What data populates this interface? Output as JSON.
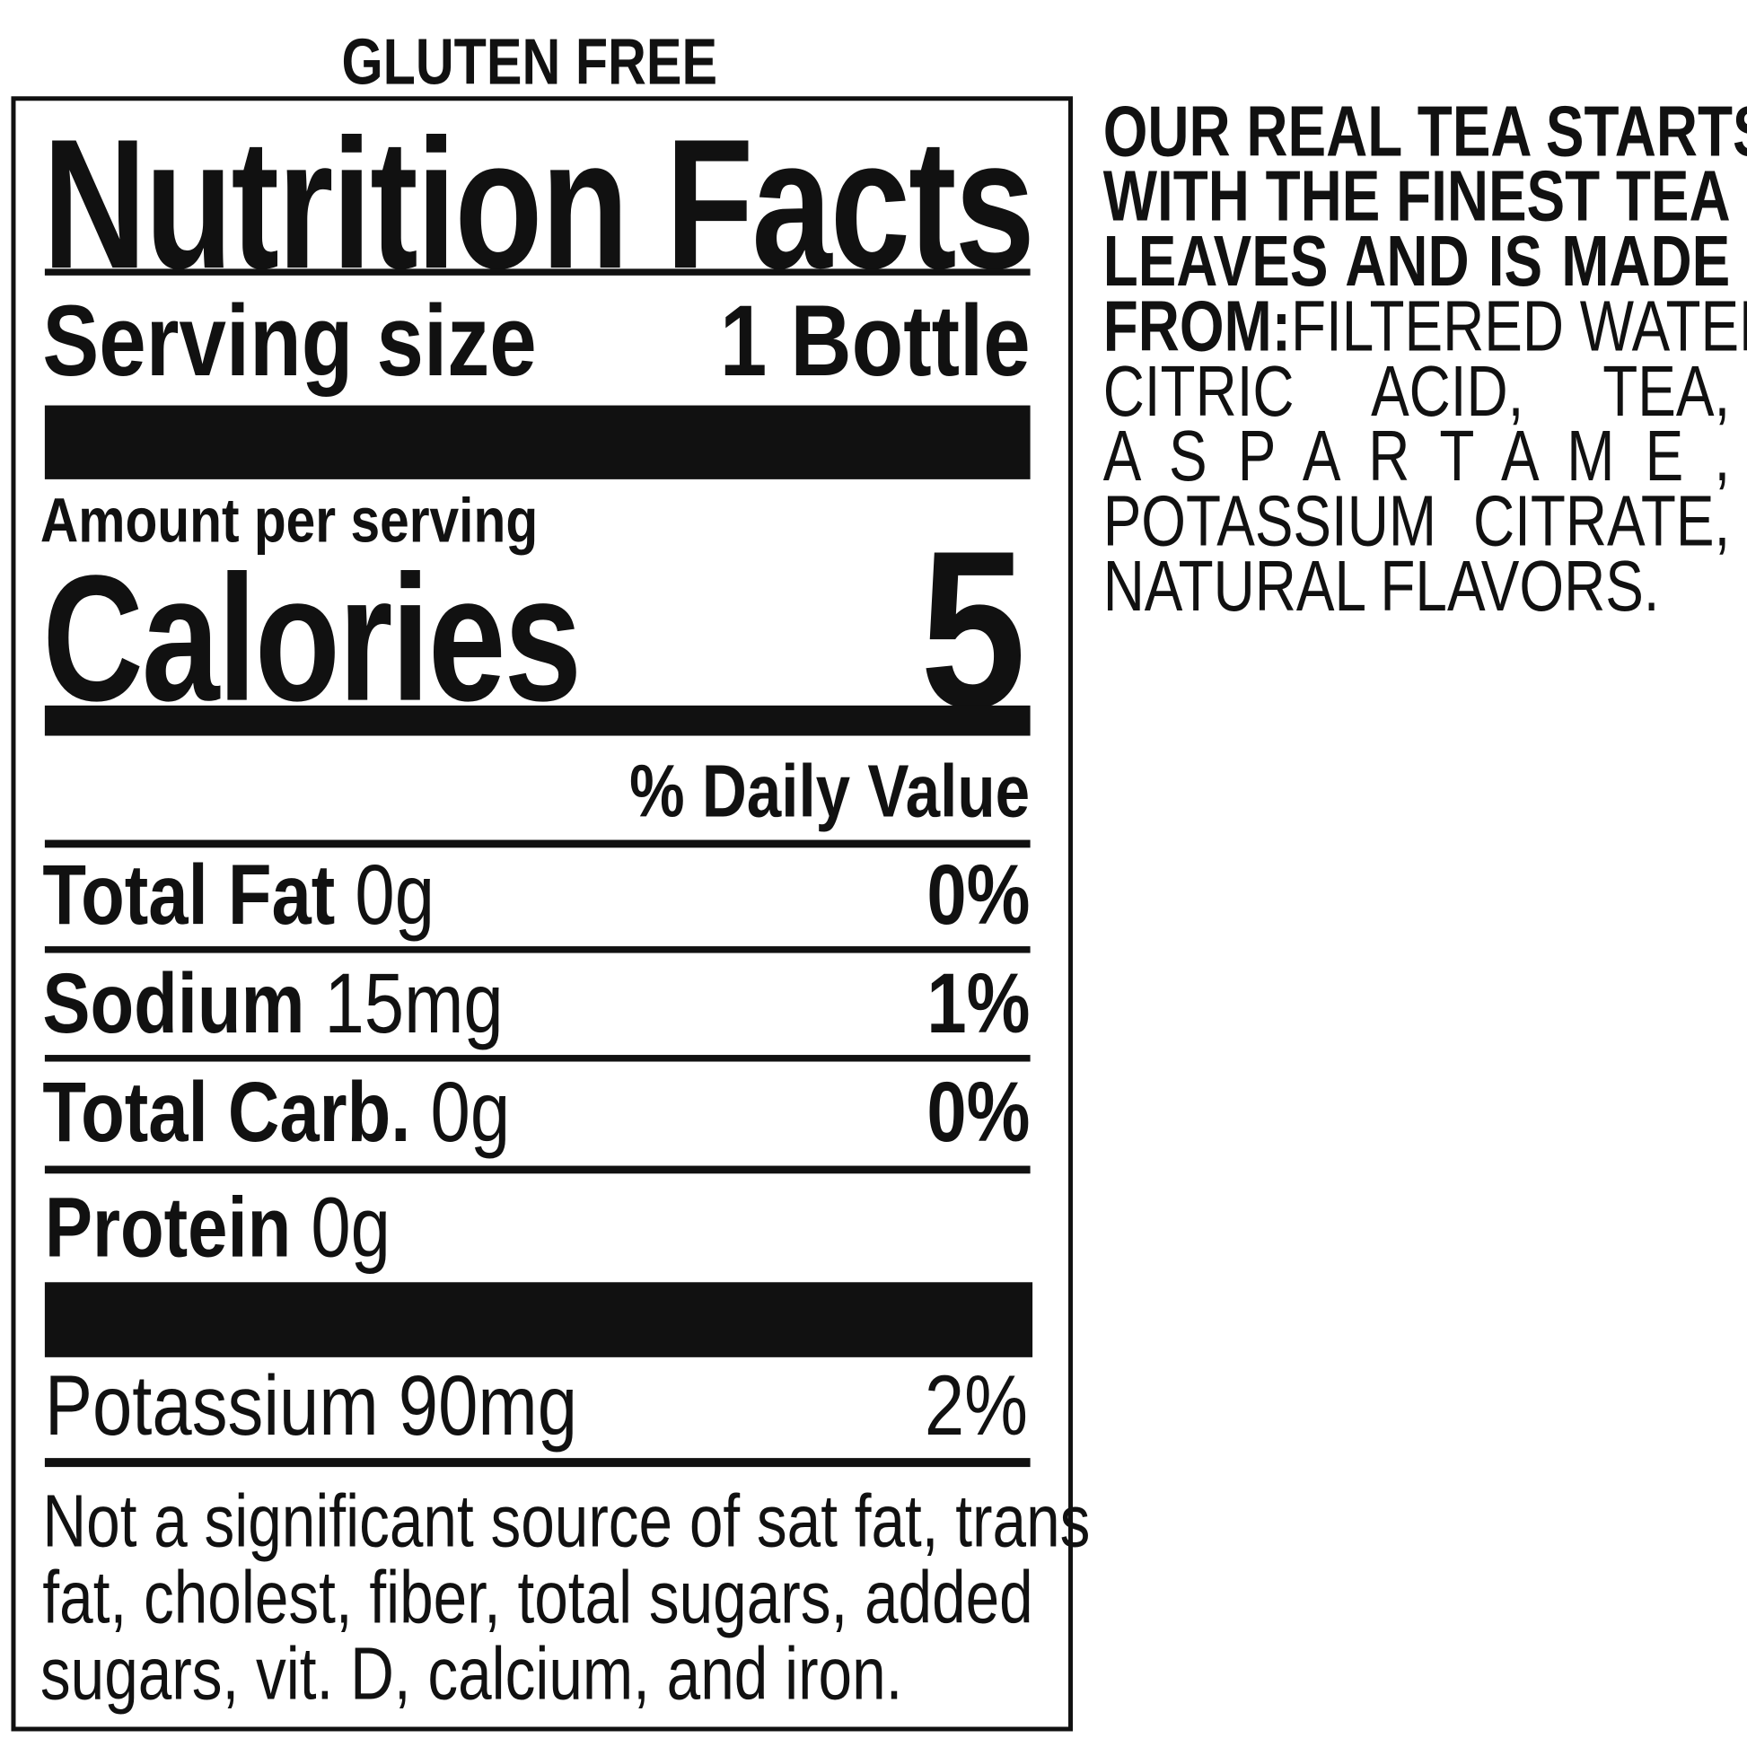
{
  "badge": "GLUTEN FREE",
  "label": {
    "title": "Nutrition Facts",
    "serving_size_label": "Serving size",
    "serving_size_value": "1 Bottle",
    "amount_per_serving": "Amount per serving",
    "calories_label": "Calories",
    "calories_value": "5",
    "daily_value_header": "% Daily Value",
    "nutrients": [
      {
        "name": "Total Fat",
        "amount": "0g",
        "dv": "0%"
      },
      {
        "name": "Sodium",
        "amount": "15mg",
        "dv": "1%"
      },
      {
        "name": "Total Carb.",
        "amount": "0g",
        "dv": "0%"
      },
      {
        "name": "Protein",
        "amount": "0g",
        "dv": ""
      }
    ],
    "potassium": {
      "name": "Potassium",
      "amount": "90mg",
      "dv": "2%"
    },
    "footnote_lines": [
      "Not a significant source of sat fat, trans",
      "fat, cholest, fiber, total sugars, added",
      "sugars, vit. D, calcium, and iron."
    ]
  },
  "ingredients": {
    "intro_lines": [
      "OUR REAL TEA STARTS",
      "WITH THE FINEST TEA",
      "LEAVES AND IS MADE"
    ],
    "from_label": "FROM:",
    "list_lines": [
      "FILTERED WATER,",
      "CITRIC ACID, TEA,",
      "A S P A R T A M E ,",
      "POTASSIUM CITRATE,",
      "NATURAL FLAVORS."
    ]
  }
}
